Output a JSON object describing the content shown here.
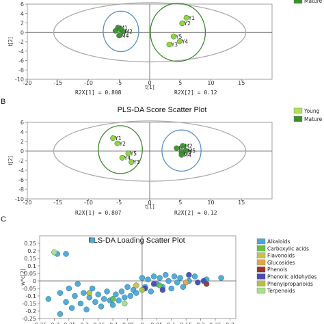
{
  "chart_data": [
    {
      "type": "scatter",
      "panel_label": "",
      "title": "",
      "xlabel": "t[1]",
      "ylabel": "t[2]",
      "xlim": [
        -20,
        20
      ],
      "ylim": [
        -10,
        6
      ],
      "xticks": [
        -20,
        -15,
        -10,
        -5,
        0,
        5,
        10,
        15
      ],
      "yticks": [
        6,
        4,
        2,
        0,
        -2,
        -4,
        -6,
        -8,
        -10
      ],
      "footer": [
        "R2X[1] = 0.808",
        "R2X[2] = 0.12"
      ],
      "legend": [
        {
          "name": "Mature",
          "color": "#3a8f2e"
        }
      ],
      "series": [
        {
          "name": "Mature",
          "color": "#3a8f2e",
          "points": [
            {
              "label": "M1",
              "x": -5.2,
              "y": 1.0
            },
            {
              "label": "M2",
              "x": -4.4,
              "y": 0.2
            },
            {
              "label": "M4",
              "x": -5.0,
              "y": -0.7
            },
            {
              "label": "",
              "x": -5.6,
              "y": 0.3
            },
            {
              "label": "",
              "x": -4.8,
              "y": 0.6
            }
          ]
        },
        {
          "name": "Young",
          "color": "#8ed13a",
          "points": [
            {
              "label": "Y1",
              "x": 6.0,
              "y": 3.1
            },
            {
              "label": "Y2",
              "x": 5.3,
              "y": 1.9
            },
            {
              "label": "Y5",
              "x": 3.9,
              "y": -0.9
            },
            {
              "label": "Y3",
              "x": 3.2,
              "y": -2.6
            },
            {
              "label": "Y4",
              "x": 4.9,
              "y": -1.9
            }
          ]
        }
      ],
      "ellipses": [
        {
          "cx": 0,
          "cy": 0,
          "rx": 15.7,
          "ry": 6.3,
          "color": "#aaaaaa"
        },
        {
          "cx": -4.7,
          "cy": 0.2,
          "rx": 2.9,
          "ry": 4.3,
          "color": "#5b8fc8"
        },
        {
          "cx": 4.6,
          "cy": 0.0,
          "rx": 4.5,
          "ry": 6.2,
          "color": "#3a8a2a"
        }
      ]
    },
    {
      "type": "scatter",
      "panel_label": "B",
      "title": "PLS-DA Score Scatter Plot",
      "xlabel": "t[1]",
      "ylabel": "t[2]",
      "xlim": [
        -20,
        20
      ],
      "ylim": [
        -10,
        6
      ],
      "xticks": [
        -20,
        -15,
        -10,
        -5,
        0,
        5,
        10,
        15
      ],
      "yticks": [
        6,
        4,
        2,
        0,
        -2,
        -4,
        -6,
        -8,
        -10
      ],
      "footer": [
        "R2X[1] = 0.807",
        "R2X[2] = 0.12"
      ],
      "legend": [
        {
          "name": "Young",
          "color": "#b3e05a"
        },
        {
          "name": "Mature",
          "color": "#3a8f2e"
        }
      ],
      "series": [
        {
          "name": "Young",
          "color": "#8ed13a",
          "points": [
            {
              "label": "Y1",
              "x": -6.0,
              "y": 2.7
            },
            {
              "label": "Y2",
              "x": -5.3,
              "y": 1.6
            },
            {
              "label": "Y5",
              "x": -3.5,
              "y": -0.5
            },
            {
              "label": "Y4",
              "x": -4.5,
              "y": -1.4
            },
            {
              "label": "Y3",
              "x": -3.0,
              "y": -2.3
            }
          ]
        },
        {
          "name": "Mature",
          "color": "#3a8f2e",
          "points": [
            {
              "label": "M1",
              "x": 4.4,
              "y": 0.6
            },
            {
              "label": "M2",
              "x": 5.4,
              "y": 1.1
            },
            {
              "label": "M3",
              "x": 5.2,
              "y": -0.2
            },
            {
              "label": "M5",
              "x": 5.9,
              "y": 0.1
            },
            {
              "label": "M4",
              "x": 5.2,
              "y": -0.8
            }
          ]
        }
      ],
      "ellipses": [
        {
          "cx": 0,
          "cy": 0,
          "rx": 15.7,
          "ry": 6.3,
          "color": "#aaaaaa"
        },
        {
          "cx": -4.8,
          "cy": 0.3,
          "rx": 3.6,
          "ry": 5.0,
          "color": "#3a8a2a"
        },
        {
          "cx": 5.2,
          "cy": 0.1,
          "rx": 3.2,
          "ry": 4.3,
          "color": "#5b8fc8"
        }
      ]
    },
    {
      "type": "scatter",
      "panel_label": "C",
      "title": "PLS-DA Loading Scatter Plot",
      "xlabel": "",
      "ylabel": "w*c[2]",
      "xlim": [
        -0.35,
        0.32
      ],
      "ylim": [
        -0.25,
        0.3
      ],
      "xticks": [
        -0.35,
        -0.3,
        -0.25,
        -0.2,
        -0.15,
        -0.1,
        -0.05,
        0,
        0.05,
        0.1,
        0.15,
        0.2,
        0.25,
        0.3
      ],
      "xtick_labels": [
        "-0.35",
        "-0.3",
        "-0.25",
        "-0.2",
        "-0.15",
        "-0.1",
        "-0.05",
        "0",
        "0.05",
        "0.1",
        "0.15",
        "0.2",
        "0.25",
        "0.3"
      ],
      "yticks": [
        0.25,
        0.2,
        0.15,
        0.1,
        0.05,
        0,
        -0.05,
        -0.1,
        -0.15,
        -0.2,
        -0.25
      ],
      "ytick_labels": [
        "0.25",
        "0.2",
        "0.15",
        "0.1",
        "0.05",
        "0",
        "-0.05",
        "-0.1",
        "-0.15",
        "-0.2",
        "-0.25"
      ],
      "legend": [
        {
          "name": "Alkaloids",
          "color": "#4aa8d8"
        },
        {
          "name": "Carboxylic acids",
          "color": "#66c043"
        },
        {
          "name": "Flavonoids",
          "color": "#c9c24a"
        },
        {
          "name": "Glucosides",
          "color": "#e0a84a"
        },
        {
          "name": "Phenols",
          "color": "#9b3326"
        },
        {
          "name": "Phenolic aldehydes",
          "color": "#4b48b0"
        },
        {
          "name": "Phenylpropanoids",
          "color": "#b4c23a"
        },
        {
          "name": "Terpenoids",
          "color": "#a9e08a"
        }
      ],
      "series": [
        {
          "name": "Alkaloids",
          "color": "#4aa8d8",
          "points": [
            {
              "x": -0.29,
              "y": 0.18
            },
            {
              "x": -0.26,
              "y": 0.18
            },
            {
              "x": -0.17,
              "y": 0.27
            },
            {
              "x": -0.32,
              "y": -0.12
            },
            {
              "x": -0.28,
              "y": -0.22
            },
            {
              "x": -0.28,
              "y": -0.08
            },
            {
              "x": -0.26,
              "y": -0.14
            },
            {
              "x": -0.25,
              "y": -0.05
            },
            {
              "x": -0.24,
              "y": -0.18
            },
            {
              "x": -0.23,
              "y": -0.1
            },
            {
              "x": -0.22,
              "y": -0.02
            },
            {
              "x": -0.21,
              "y": -0.15
            },
            {
              "x": -0.2,
              "y": -0.08
            },
            {
              "x": -0.19,
              "y": -0.19
            },
            {
              "x": -0.18,
              "y": -0.11
            },
            {
              "x": -0.17,
              "y": -0.05
            },
            {
              "x": -0.16,
              "y": -0.14
            },
            {
              "x": -0.15,
              "y": -0.09
            },
            {
              "x": -0.14,
              "y": -0.17
            },
            {
              "x": -0.13,
              "y": -0.12
            },
            {
              "x": -0.12,
              "y": -0.07
            },
            {
              "x": -0.11,
              "y": -0.13
            },
            {
              "x": -0.1,
              "y": -0.16
            },
            {
              "x": -0.09,
              "y": -0.09
            },
            {
              "x": -0.08,
              "y": -0.13
            },
            {
              "x": -0.07,
              "y": -0.07
            },
            {
              "x": -0.06,
              "y": -0.11
            },
            {
              "x": -0.05,
              "y": -0.04
            },
            {
              "x": -0.04,
              "y": -0.1
            },
            {
              "x": -0.03,
              "y": -0.06
            },
            {
              "x": -0.02,
              "y": -0.08
            },
            {
              "x": 0.0,
              "y": 0.02
            },
            {
              "x": 0.01,
              "y": -0.04
            },
            {
              "x": 0.02,
              "y": 0.01
            },
            {
              "x": 0.03,
              "y": -0.07
            },
            {
              "x": 0.04,
              "y": 0.03
            },
            {
              "x": 0.05,
              "y": -0.02
            },
            {
              "x": 0.06,
              "y": 0.02
            },
            {
              "x": 0.07,
              "y": -0.04
            },
            {
              "x": 0.08,
              "y": 0.04
            },
            {
              "x": 0.09,
              "y": 0.0
            },
            {
              "x": 0.1,
              "y": -0.05
            },
            {
              "x": 0.11,
              "y": 0.03
            },
            {
              "x": 0.12,
              "y": -0.01
            },
            {
              "x": 0.13,
              "y": 0.02
            },
            {
              "x": 0.14,
              "y": -0.04
            },
            {
              "x": 0.16,
              "y": 0.0
            },
            {
              "x": 0.18,
              "y": 0.03
            },
            {
              "x": 0.22,
              "y": 0.01
            },
            {
              "x": 0.27,
              "y": 0.02
            }
          ]
        },
        {
          "name": "Carboxylic acids",
          "color": "#66c043",
          "points": [
            {
              "x": -0.1,
              "y": -0.12
            },
            {
              "x": 0.06,
              "y": -0.03
            }
          ]
        },
        {
          "name": "Flavonoids",
          "color": "#c9c24a",
          "points": [
            {
              "x": -0.02,
              "y": -0.03
            }
          ]
        },
        {
          "name": "Glucosides",
          "color": "#e0a84a",
          "points": [
            {
              "x": 0.15,
              "y": -0.01
            }
          ]
        },
        {
          "name": "Phenols",
          "color": "#9b3326",
          "points": [
            {
              "x": 0.22,
              "y": -0.02
            }
          ]
        },
        {
          "name": "Phenolic aldehydes",
          "color": "#4b48b0",
          "points": [
            {
              "x": 0.01,
              "y": -0.05
            },
            {
              "x": 0.04,
              "y": -0.02
            },
            {
              "x": 0.07,
              "y": -0.06
            },
            {
              "x": 0.16,
              "y": 0.04
            },
            {
              "x": 0.19,
              "y": -0.01
            },
            {
              "x": 0.21,
              "y": 0.0
            }
          ]
        },
        {
          "name": "Phenylpropanoids",
          "color": "#b4c23a",
          "points": [
            {
              "x": -0.18,
              "y": -0.08
            },
            {
              "x": 0.0,
              "y": -0.06
            }
          ]
        },
        {
          "name": "Terpenoids",
          "color": "#a9e08a",
          "points": [
            {
              "x": -0.3,
              "y": 0.19
            },
            {
              "x": -0.06,
              "y": -0.15
            }
          ]
        }
      ]
    }
  ]
}
